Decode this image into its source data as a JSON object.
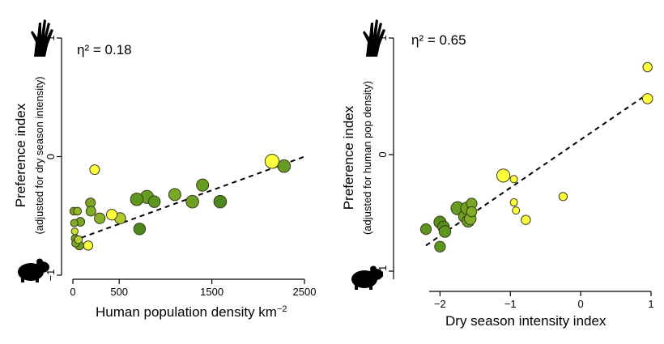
{
  "chart_data": [
    {
      "type": "scatter",
      "annotation": "η² = 0.18",
      "xlabel": "Human population density km",
      "xlabel_superscript": "−2",
      "ylabel": "Preference index",
      "ylabel_sub": "(adjusted for dry season intensity)",
      "xlim": [
        0,
        2500
      ],
      "ylim": [
        -1,
        1
      ],
      "xticks": [
        0,
        500,
        1500,
        2500
      ],
      "xtick_labels": [
        "0",
        "500",
        "1500",
        "2500"
      ],
      "yticks": [
        -1,
        0,
        1
      ],
      "ytick_labels": [
        "−1",
        "0",
        "1"
      ],
      "trendline": {
        "x": [
          0,
          2500
        ],
        "y": [
          -0.71,
          0.0
        ]
      },
      "colors": {
        "low": "#ffff3c",
        "high": "#4a8a1c"
      },
      "points": [
        {
          "x": 10,
          "y": -0.46,
          "size": 0.3,
          "color": 0.75
        },
        {
          "x": 15,
          "y": -0.56,
          "size": 0.25,
          "color": 0.7
        },
        {
          "x": 20,
          "y": -0.63,
          "size": 0.2,
          "color": 0.3
        },
        {
          "x": 25,
          "y": -0.69,
          "size": 0.3,
          "color": 0.8
        },
        {
          "x": 30,
          "y": -0.73,
          "size": 0.3,
          "color": 0.75
        },
        {
          "x": 50,
          "y": -0.46,
          "size": 0.3,
          "color": 0.6
        },
        {
          "x": 60,
          "y": -0.7,
          "size": 0.3,
          "color": 0.4
        },
        {
          "x": 70,
          "y": -0.75,
          "size": 0.4,
          "color": 0.8
        },
        {
          "x": 80,
          "y": -0.55,
          "size": 0.4,
          "color": 0.75
        },
        {
          "x": 165,
          "y": -0.75,
          "size": 0.45,
          "color": 0.0
        },
        {
          "x": 190,
          "y": -0.39,
          "size": 0.5,
          "color": 0.75
        },
        {
          "x": 195,
          "y": -0.46,
          "size": 0.5,
          "color": 0.7
        },
        {
          "x": 235,
          "y": -0.11,
          "size": 0.5,
          "color": 0.0
        },
        {
          "x": 290,
          "y": -0.52,
          "size": 0.6,
          "color": 0.65
        },
        {
          "x": 420,
          "y": -0.49,
          "size": 0.6,
          "color": 0.0
        },
        {
          "x": 510,
          "y": -0.52,
          "size": 0.65,
          "color": 0.45
        },
        {
          "x": 690,
          "y": -0.36,
          "size": 0.8,
          "color": 0.9
        },
        {
          "x": 720,
          "y": -0.61,
          "size": 0.7,
          "color": 1.0
        },
        {
          "x": 800,
          "y": -0.34,
          "size": 0.85,
          "color": 0.85
        },
        {
          "x": 880,
          "y": -0.38,
          "size": 0.7,
          "color": 0.9
        },
        {
          "x": 1100,
          "y": -0.32,
          "size": 0.75,
          "color": 0.75
        },
        {
          "x": 1290,
          "y": -0.38,
          "size": 0.8,
          "color": 0.8
        },
        {
          "x": 1400,
          "y": -0.24,
          "size": 0.75,
          "color": 0.85
        },
        {
          "x": 1590,
          "y": -0.38,
          "size": 0.8,
          "color": 1.0
        },
        {
          "x": 2150,
          "y": -0.04,
          "size": 0.95,
          "color": 0.0
        },
        {
          "x": 2280,
          "y": -0.08,
          "size": 0.8,
          "color": 0.85
        }
      ]
    },
    {
      "type": "scatter",
      "annotation": "η² = 0.65",
      "xlabel": "Dry season intensity index",
      "ylabel": "Preference index",
      "ylabel_sub": "(adjusted for human pop density)",
      "xlim": [
        -2.2,
        1.0
      ],
      "ylim": [
        -1,
        1
      ],
      "xticks": [
        -2,
        -1,
        0,
        1
      ],
      "xtick_labels": [
        "−2",
        "−1",
        "0",
        "1"
      ],
      "yticks": [
        -1,
        0,
        1
      ],
      "ytick_labels": [
        "−1",
        "0",
        "1"
      ],
      "trendline": {
        "x": [
          -2.2,
          0.95
        ],
        "y": [
          -0.78,
          0.52
        ]
      },
      "colors": {
        "low": "#ffff3c",
        "high": "#4a8a1c"
      },
      "points": [
        {
          "x": -2.2,
          "y": -0.64,
          "size": 0.6,
          "color": 0.9
        },
        {
          "x": -2.0,
          "y": -0.79,
          "size": 0.6,
          "color": 0.9
        },
        {
          "x": -2.0,
          "y": -0.58,
          "size": 0.75,
          "color": 0.95
        },
        {
          "x": -1.95,
          "y": -0.62,
          "size": 0.7,
          "color": 0.95
        },
        {
          "x": -1.93,
          "y": -0.66,
          "size": 0.7,
          "color": 0.9
        },
        {
          "x": -1.75,
          "y": -0.46,
          "size": 0.85,
          "color": 0.85
        },
        {
          "x": -1.65,
          "y": -0.53,
          "size": 0.75,
          "color": 0.8
        },
        {
          "x": -1.62,
          "y": -0.46,
          "size": 0.75,
          "color": 0.8
        },
        {
          "x": -1.6,
          "y": -0.57,
          "size": 0.75,
          "color": 0.85
        },
        {
          "x": -1.57,
          "y": -0.55,
          "size": 0.7,
          "color": 0.7
        },
        {
          "x": -1.55,
          "y": -0.42,
          "size": 0.6,
          "color": 0.75
        },
        {
          "x": -1.55,
          "y": -0.49,
          "size": 0.55,
          "color": 0.7
        },
        {
          "x": -1.1,
          "y": -0.18,
          "size": 0.85,
          "color": 0.0
        },
        {
          "x": -0.95,
          "y": -0.21,
          "size": 0.25,
          "color": 0.0
        },
        {
          "x": -0.95,
          "y": -0.41,
          "size": 0.25,
          "color": 0.0
        },
        {
          "x": -0.92,
          "y": -0.48,
          "size": 0.25,
          "color": 0.0
        },
        {
          "x": -0.78,
          "y": -0.56,
          "size": 0.45,
          "color": 0.0
        },
        {
          "x": -0.25,
          "y": -0.36,
          "size": 0.35,
          "color": 0.0
        },
        {
          "x": 0.95,
          "y": 0.75,
          "size": 0.45,
          "color": 0.0
        },
        {
          "x": 0.95,
          "y": 0.48,
          "size": 0.55,
          "color": 0.0
        }
      ]
    }
  ]
}
